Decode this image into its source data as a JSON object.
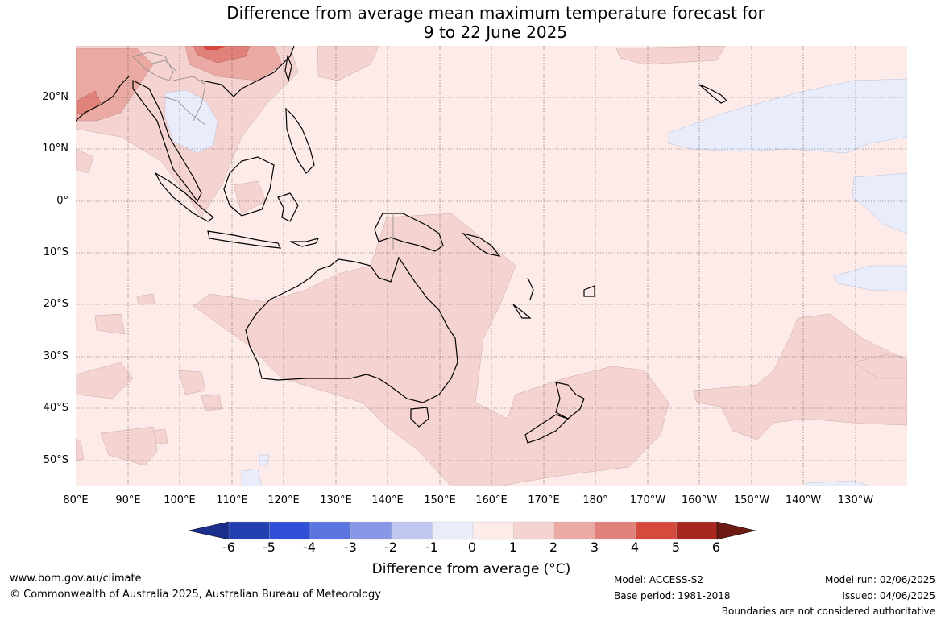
{
  "title": {
    "line1": "Difference from average mean maximum temperature forecast for",
    "line2": "9 to 22 June 2025"
  },
  "map": {
    "lat_labels": [
      "20°N",
      "10°N",
      "0°",
      "10°S",
      "20°S",
      "30°S",
      "40°S",
      "50°S"
    ],
    "lon_labels": [
      "80°E",
      "90°E",
      "100°E",
      "110°E",
      "120°E",
      "130°E",
      "140°E",
      "150°E",
      "160°E",
      "170°E",
      "180°",
      "170°W",
      "160°W",
      "150°W",
      "140°W",
      "130°W"
    ],
    "ocean_color": "#fcebe8"
  },
  "colorbar": {
    "title": "Difference from average (°C)",
    "ticks": [
      "-6",
      "-5",
      "-4",
      "-3",
      "-2",
      "-1",
      "0",
      "1",
      "2",
      "3",
      "4",
      "5",
      "6"
    ],
    "colors": [
      "#1c2e8c",
      "#2440b0",
      "#3050d8",
      "#5a74e0",
      "#8898e6",
      "#c0c8f2",
      "#e9edfb",
      "#fcebe8",
      "#f5d3d0",
      "#eaa9a3",
      "#e0827a",
      "#d64a3e",
      "#a8271f",
      "#6e1a14"
    ]
  },
  "footer": {
    "website": "www.bom.gov.au/climate",
    "copyright": "© Commonwealth of Australia 2025, Australian Bureau of Meteorology",
    "model": "Model: ACCESS-S2",
    "base_period": "Base period: 1981-2018",
    "model_run": "Model run: 02/06/2025",
    "issued": "Issued: 04/06/2025",
    "disclaimer": "Boundaries are not considered authoritative"
  }
}
